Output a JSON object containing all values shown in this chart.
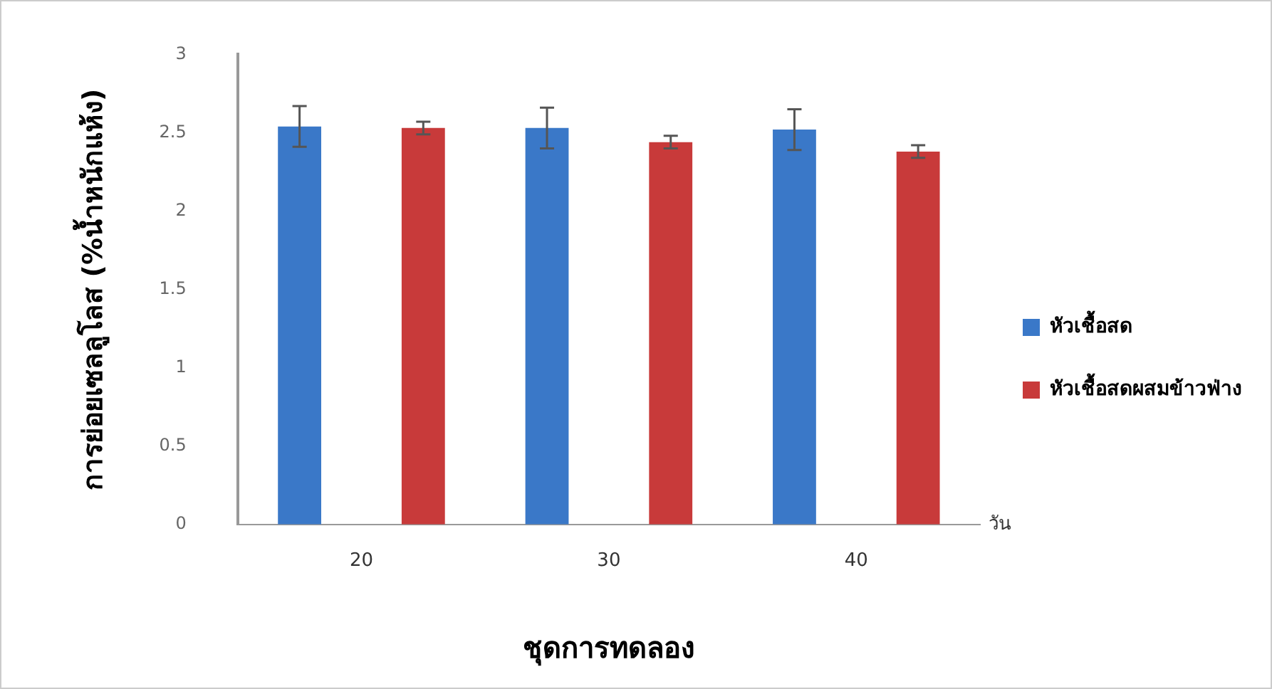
{
  "chart_data": {
    "type": "bar",
    "xlabel": "ชุดการทดลอง",
    "ylabel": "การย่อยเซลลูโลส (%น้ำหนักแห้ง)",
    "categories": [
      "20",
      "30",
      "40"
    ],
    "series": [
      {
        "name": "หัวเชื้อสด",
        "color": "#3a78c8",
        "values": [
          2.54,
          2.53,
          2.52
        ],
        "errors": [
          0.13,
          0.13,
          0.13
        ]
      },
      {
        "name": "หัวเชื้อสดผสมข้าวฟ่าง",
        "color": "#c83a3a",
        "values": [
          2.53,
          2.44,
          2.38
        ],
        "errors": [
          0.04,
          0.04,
          0.04
        ]
      }
    ],
    "ylim": [
      0,
      3
    ],
    "yticks": [
      0,
      0.5,
      1,
      1.5,
      2,
      2.5,
      3
    ],
    "grid": false,
    "legend": "right",
    "annotations": [
      "วัน"
    ]
  }
}
